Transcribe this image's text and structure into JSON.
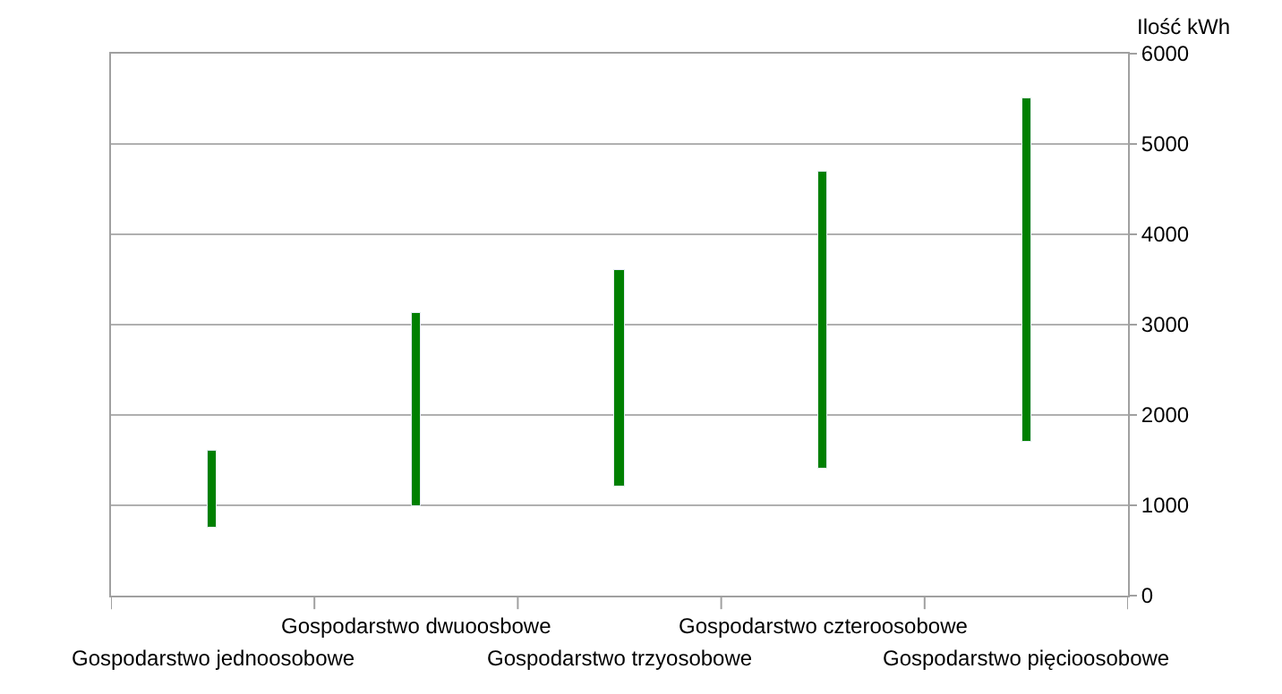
{
  "chart_data": {
    "type": "bar",
    "ylabel": "Ilość kWh",
    "categories": [
      "Gospodarstwo jednoosobowe",
      "Gospodarstwo dwuoosbowe",
      "Gospodarstwo trzyosobowe",
      "Gospodarstwo czteroosobowe",
      "Gospodarstwo pięcioosobowe"
    ],
    "base": [
      750,
      1000,
      1200,
      1400,
      1700
    ],
    "values": [
      850,
      2130,
      2400,
      3300,
      3800
    ],
    "color": "#008000",
    "ylim": [
      0,
      6000
    ],
    "yticks": [
      0,
      1000,
      2000,
      3000,
      4000,
      5000,
      6000
    ],
    "grid": "y",
    "legend": false
  }
}
